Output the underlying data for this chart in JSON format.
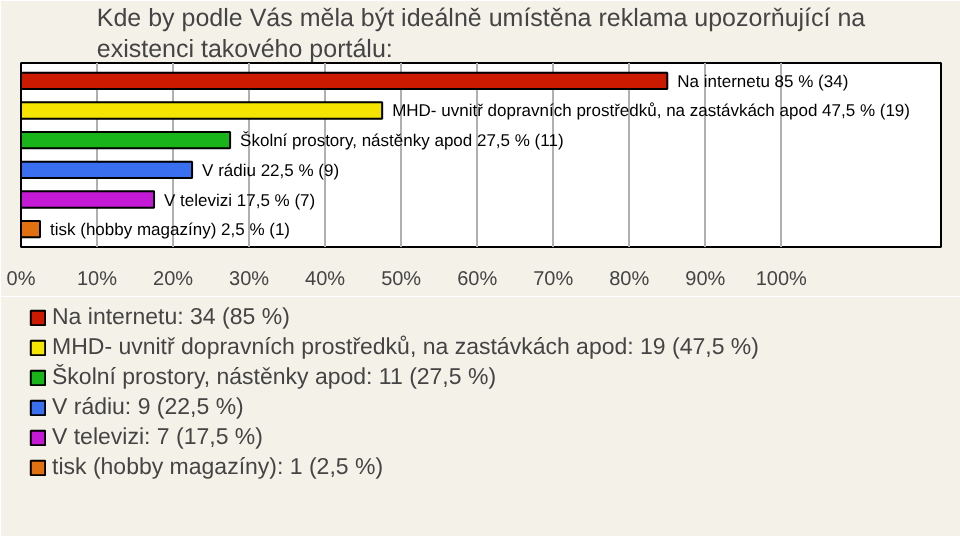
{
  "chart_data": {
    "type": "bar",
    "orientation": "horizontal",
    "title": "Kde by podle Vás měla být ideálně umístěna reklama upozorňující na existenci takového portálu:",
    "categories": [
      null,
      null,
      null,
      null,
      null,
      null
    ],
    "series": [
      {
        "name": "Na internetu: 34 (85 %)",
        "color": "#cc1a00",
        "values": [
          85,
          null,
          null,
          null,
          null,
          null
        ],
        "value_labels": [
          "Na internetu 85 % (34)",
          null,
          null,
          null,
          null,
          null
        ]
      },
      {
        "name": "MHD- uvnitř dopravních prostředků, na zastávkách apod: 19 (47,5 %)",
        "color": "#f5e400",
        "values": [
          null,
          47.5,
          null,
          null,
          null,
          null
        ],
        "value_labels": [
          null,
          "MHD- uvnitř dopravních prostředků, na zastávkách apod 47,5 % (19)",
          null,
          null,
          null,
          null
        ]
      },
      {
        "name": "Školní prostory, nástěnky apod: 11 (27,5 %)",
        "color": "#19b419",
        "values": [
          null,
          null,
          27.5,
          null,
          null,
          null
        ],
        "value_labels": [
          null,
          null,
          "Školní prostory, nástěnky apod 27,5 % (11)",
          null,
          null,
          null
        ]
      },
      {
        "name": "V rádiu: 9 (22,5 %)",
        "color": "#3a6ff0",
        "values": [
          null,
          null,
          null,
          22.5,
          null,
          null
        ],
        "value_labels": [
          null,
          null,
          null,
          "V rádiu 22,5 % (9)",
          null,
          null
        ]
      },
      {
        "name": "V televizi: 7 (17,5 %)",
        "color": "#c41ad6",
        "values": [
          null,
          null,
          null,
          null,
          17.5,
          null
        ],
        "value_labels": [
          null,
          null,
          null,
          null,
          "V televizi 17,5 % (7)",
          null
        ]
      },
      {
        "name": "tisk (hobby magazíny): 1 (2,5 %)",
        "color": "#e07010",
        "values": [
          null,
          null,
          null,
          null,
          null,
          2.5
        ],
        "value_labels": [
          null,
          null,
          null,
          null,
          null,
          "tisk (hobby magazíny) 2,5 % (1)"
        ]
      }
    ],
    "xlim": [
      0,
      121
    ],
    "xticks": [
      {
        "value": 0,
        "label": "0%"
      },
      {
        "value": 10,
        "label": "10%"
      },
      {
        "value": 20,
        "label": "20%"
      },
      {
        "value": 30,
        "label": "30%"
      },
      {
        "value": 40,
        "label": "40%"
      },
      {
        "value": 50,
        "label": "50%"
      },
      {
        "value": 60,
        "label": "60%"
      },
      {
        "value": 70,
        "label": "70%"
      },
      {
        "value": 80,
        "label": "80%"
      },
      {
        "value": 90,
        "label": "90%"
      },
      {
        "value": 100,
        "label": "100%"
      }
    ],
    "grid": "x",
    "legend": "bottom"
  }
}
